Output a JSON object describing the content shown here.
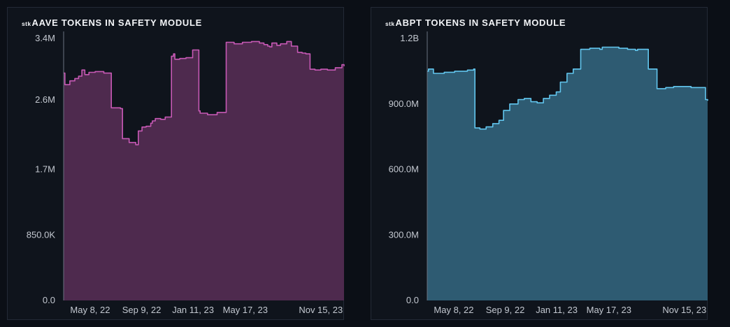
{
  "charts": [
    {
      "title_prefix": "stk",
      "title_main": "AAVE TOKENS IN SAFETY MODULE",
      "line_color": "#c759b5",
      "fill_color": "#4e2a4e",
      "chart_data": {
        "type": "area",
        "title": "stkAAVE TOKENS IN SAFETY MODULE",
        "ylim": [
          0,
          3400000
        ],
        "y_ticks": [
          0,
          850000,
          1700000,
          2600000,
          3400000
        ],
        "y_tick_labels": [
          "0.0",
          "850.0K",
          "1.7M",
          "2.6M",
          "3.4M"
        ],
        "x_tick_dates": [
          "2022-05-08",
          "2022-09-09",
          "2023-01-11",
          "2023-05-17",
          "2023-11-15"
        ],
        "x_tick_labels": [
          "May 8, 22",
          "Sep 9, 22",
          "Jan 11, 23",
          "May 17, 23",
          "Nov 15, 23"
        ],
        "x_range": [
          "2022-03-05",
          "2024-01-10"
        ],
        "grid": false,
        "x": [
          "2022-03-05",
          "2022-03-08",
          "2022-03-20",
          "2022-04-01",
          "2022-04-10",
          "2022-04-18",
          "2022-04-25",
          "2022-05-05",
          "2022-05-20",
          "2022-06-10",
          "2022-06-25",
          "2022-06-28",
          "2022-07-20",
          "2022-07-25",
          "2022-08-10",
          "2022-08-26",
          "2022-09-01",
          "2022-09-10",
          "2022-09-20",
          "2022-10-01",
          "2022-10-05",
          "2022-10-12",
          "2022-10-25",
          "2022-11-05",
          "2022-11-20",
          "2022-11-25",
          "2022-11-28",
          "2022-12-10",
          "2022-12-25",
          "2023-01-10",
          "2023-01-25",
          "2023-01-28",
          "2023-02-15",
          "2023-03-10",
          "2023-04-01",
          "2023-04-20",
          "2023-05-10",
          "2023-06-01",
          "2023-06-20",
          "2023-07-01",
          "2023-07-10",
          "2023-07-15",
          "2023-07-20",
          "2023-08-01",
          "2023-08-10",
          "2023-08-25",
          "2023-09-05",
          "2023-09-20",
          "2023-10-01",
          "2023-10-10",
          "2023-10-20",
          "2023-11-01",
          "2023-11-15",
          "2023-12-01",
          "2023-12-20",
          "2024-01-01",
          "2024-01-05",
          "2024-01-10"
        ],
        "values": [
          2950000,
          2800000,
          2850000,
          2880000,
          2910000,
          2990000,
          2930000,
          2960000,
          2970000,
          2950000,
          2950000,
          2500000,
          2490000,
          2100000,
          2050000,
          2020000,
          2200000,
          2250000,
          2260000,
          2300000,
          2330000,
          2360000,
          2350000,
          2380000,
          3170000,
          3200000,
          3130000,
          3140000,
          3150000,
          3250000,
          2460000,
          2430000,
          2410000,
          2440000,
          3350000,
          3330000,
          3350000,
          3360000,
          3340000,
          3320000,
          3300000,
          3290000,
          3340000,
          3310000,
          3330000,
          3360000,
          3300000,
          3220000,
          3210000,
          3200000,
          3000000,
          2990000,
          3000000,
          2990000,
          3020000,
          3020000,
          3060000,
          3040000
        ]
      }
    },
    {
      "title_prefix": "stk",
      "title_main": "ABPT TOKENS IN SAFETY MODULE",
      "line_color": "#62c6ee",
      "fill_color": "#2e5b72",
      "chart_data": {
        "type": "area",
        "title": "stkABPT TOKENS IN SAFETY MODULE",
        "ylim": [
          0,
          1200000000
        ],
        "y_ticks": [
          0,
          300000000,
          600000000,
          900000000,
          1200000000
        ],
        "y_tick_labels": [
          "0.0",
          "300.0M",
          "600.0M",
          "900.0M",
          "1.2B"
        ],
        "x_tick_dates": [
          "2022-05-08",
          "2022-09-09",
          "2023-01-11",
          "2023-05-17",
          "2023-11-15"
        ],
        "x_tick_labels": [
          "May 8, 22",
          "Sep 9, 22",
          "Jan 11, 23",
          "May 17, 23",
          "Nov 15, 23"
        ],
        "x_range": [
          "2022-03-05",
          "2024-01-10"
        ],
        "grid": false,
        "x": [
          "2022-03-05",
          "2022-03-08",
          "2022-03-20",
          "2022-04-15",
          "2022-05-10",
          "2022-06-10",
          "2022-06-25",
          "2022-06-28",
          "2022-07-10",
          "2022-07-25",
          "2022-08-10",
          "2022-08-25",
          "2022-09-05",
          "2022-09-20",
          "2022-10-10",
          "2022-10-25",
          "2022-11-10",
          "2022-11-25",
          "2022-12-10",
          "2022-12-25",
          "2023-01-10",
          "2023-01-20",
          "2023-02-05",
          "2023-02-20",
          "2023-03-10",
          "2023-04-01",
          "2023-04-25",
          "2023-05-01",
          "2023-05-20",
          "2023-06-10",
          "2023-07-01",
          "2023-07-20",
          "2023-07-25",
          "2023-08-05",
          "2023-08-10",
          "2023-08-20",
          "2023-09-10",
          "2023-10-01",
          "2023-10-20",
          "2023-11-10",
          "2023-12-01",
          "2023-12-20",
          "2024-01-01",
          "2024-01-05",
          "2024-01-10"
        ],
        "values": [
          1050000000,
          1060000000,
          1040000000,
          1045000000,
          1050000000,
          1055000000,
          1060000000,
          790000000,
          785000000,
          795000000,
          810000000,
          825000000,
          870000000,
          900000000,
          920000000,
          925000000,
          910000000,
          905000000,
          925000000,
          940000000,
          955000000,
          1000000000,
          1040000000,
          1060000000,
          1150000000,
          1155000000,
          1150000000,
          1160000000,
          1160000000,
          1155000000,
          1150000000,
          1145000000,
          1150000000,
          1150000000,
          1150000000,
          1060000000,
          970000000,
          975000000,
          980000000,
          980000000,
          975000000,
          975000000,
          975000000,
          920000000,
          915000000
        ]
      }
    }
  ]
}
